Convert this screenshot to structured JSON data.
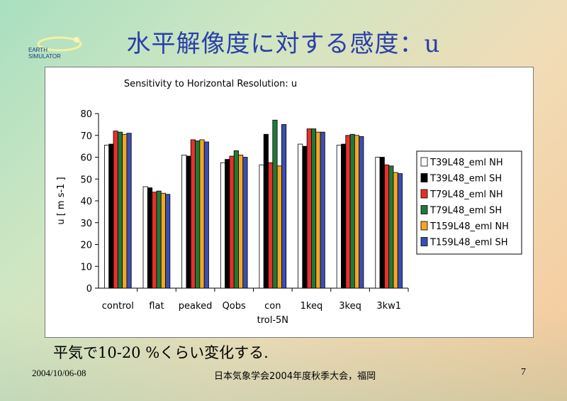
{
  "slide": {
    "title": "水平解像度に対する感度：u",
    "caption": "平気で10-20 %くらい変化する.",
    "footer_date": "2004/10/06-08",
    "footer_event": "日本気象学会2004年度秋季大会，福岡",
    "page_number": "7"
  },
  "logo": {
    "line1": "EARTH",
    "line2": "SIMULATOR"
  },
  "chart_data": {
    "type": "bar",
    "title": "Sensitivity to Horizontal Resolution: u",
    "xlabel": "",
    "ylabel": "u [ m s-1 ]",
    "ylim": [
      0,
      80
    ],
    "yticks": [
      0,
      10,
      20,
      30,
      40,
      50,
      60,
      70,
      80
    ],
    "grid": false,
    "legend_position": "right",
    "categories": [
      "control",
      "flat",
      "peaked",
      "Qobs",
      "con trol-5N",
      "1keq",
      "3keq",
      "3kw1"
    ],
    "category_label_lines": [
      [
        "control"
      ],
      [
        "flat"
      ],
      [
        "peaked"
      ],
      [
        "Qobs"
      ],
      [
        "con",
        "trol-5N"
      ],
      [
        "1keq"
      ],
      [
        "3keq"
      ],
      [
        "3kw1"
      ]
    ],
    "series": [
      {
        "name": "T39L48_eml NH",
        "color": "#ffffff",
        "values": [
          65.5,
          46.5,
          61.0,
          57.5,
          56.5,
          66.0,
          65.5,
          60.0
        ]
      },
      {
        "name": "T39L48_eml SH",
        "color": "#000000",
        "values": [
          66.0,
          46.0,
          60.5,
          59.0,
          70.5,
          65.0,
          66.0,
          60.0
        ]
      },
      {
        "name": "T79L48_eml NH",
        "color": "#e8302a",
        "values": [
          72.0,
          44.0,
          68.0,
          60.5,
          57.5,
          73.0,
          70.0,
          56.5
        ]
      },
      {
        "name": "T79L48_eml SH",
        "color": "#1f7a3a",
        "values": [
          71.5,
          44.5,
          67.5,
          63.0,
          77.0,
          73.0,
          70.5,
          56.0
        ]
      },
      {
        "name": "T159L48_eml NH",
        "color": "#f5a623",
        "values": [
          70.5,
          43.5,
          68.0,
          61.0,
          56.0,
          71.5,
          70.0,
          53.0
        ]
      },
      {
        "name": "T159L48_eml SH",
        "color": "#3b4fb0",
        "values": [
          71.0,
          43.0,
          67.0,
          60.0,
          75.0,
          71.5,
          69.5,
          52.5
        ]
      }
    ]
  }
}
